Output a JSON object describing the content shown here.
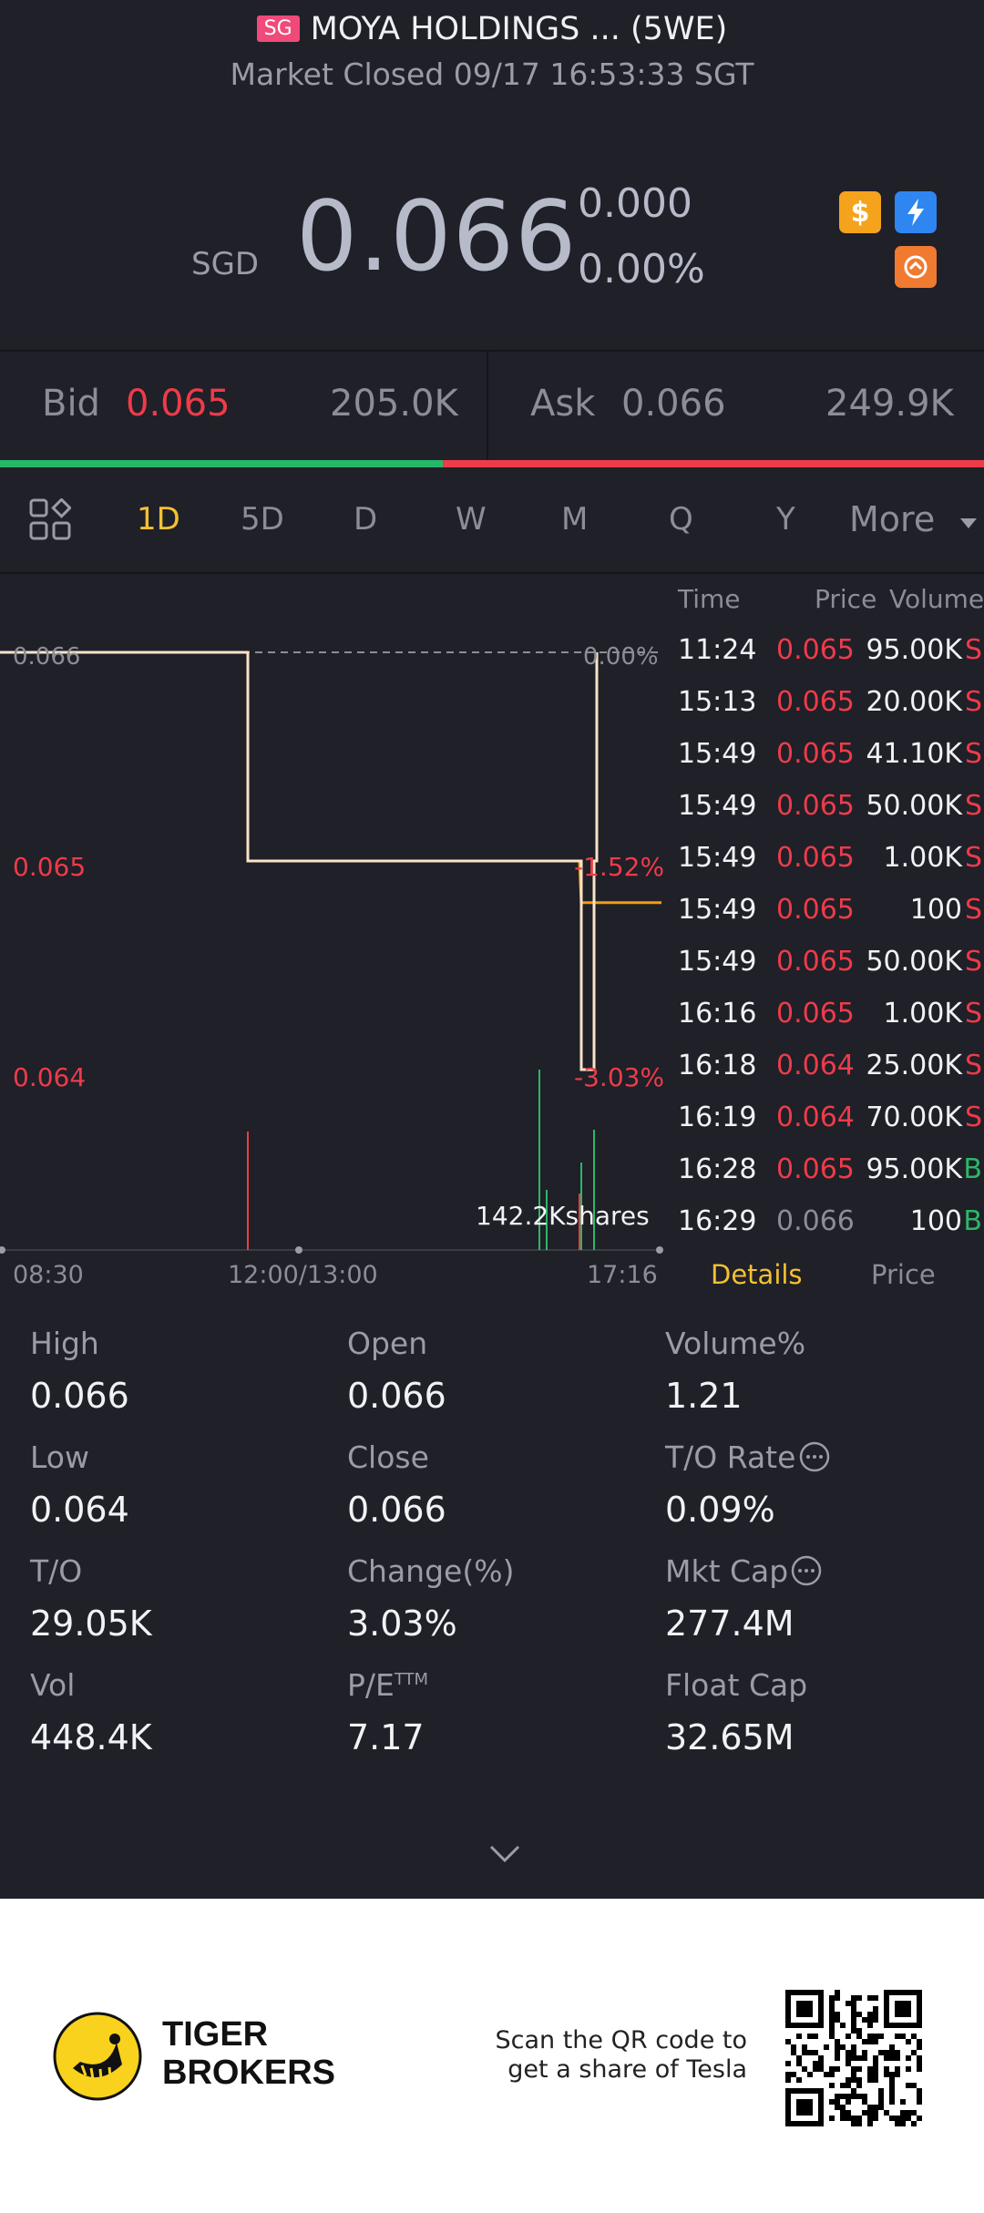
{
  "header": {
    "market_badge": "SG",
    "title": "MOYA HOLDINGS ... (5WE)",
    "subtitle": "Market Closed 09/17 16:53:33 SGT"
  },
  "quote": {
    "currency": "SGD",
    "price": "0.066",
    "change": "0.000",
    "change_pct": "0.00%",
    "icons": [
      "dollar-icon",
      "lightning-icon",
      "exchange-icon"
    ]
  },
  "bid_ask": {
    "bid_label": "Bid",
    "bid_price": "0.065",
    "bid_size": "205.0K",
    "ask_label": "Ask",
    "ask_price": "0.066",
    "ask_size": "249.9K",
    "bid_ratio": 0.45
  },
  "tabs": {
    "items": [
      "1D",
      "5D",
      "D",
      "W",
      "M",
      "Q",
      "Y"
    ],
    "active": "1D",
    "more_label": "More"
  },
  "chart": {
    "price_labels": {
      "top": "0.066",
      "mid": "0.065",
      "low": "0.064"
    },
    "pct_labels": {
      "top": "0.00%",
      "mid": "-1.52%",
      "low": "-3.03%"
    },
    "volume_label": "142.2Kshares",
    "time_labels": {
      "start": "08:30",
      "mid": "12:00/13:00",
      "end": "17:16"
    }
  },
  "chart_data": {
    "type": "line",
    "title": "",
    "x_label": "",
    "y_label": "",
    "price_series": [
      {
        "x": "08:30",
        "y": 0.066
      },
      {
        "x": "11:24",
        "y": 0.066
      },
      {
        "x": "11:25",
        "y": 0.065
      },
      {
        "x": "15:49",
        "y": 0.065
      },
      {
        "x": "16:18",
        "y": 0.064
      },
      {
        "x": "16:28",
        "y": 0.065
      },
      {
        "x": "16:29",
        "y": 0.066
      }
    ],
    "avg_series": [
      {
        "x": "15:49",
        "y": 0.065
      },
      {
        "x": "16:18",
        "y": 0.0648
      },
      {
        "x": "17:16",
        "y": 0.0648
      }
    ],
    "ylim": [
      0.064,
      0.066
    ],
    "prev_close": 0.066
  },
  "trades": {
    "headers": {
      "time": "Time",
      "price": "Price",
      "volume": "Volume"
    },
    "rows": [
      {
        "time": "11:24",
        "price": "0.065",
        "volume": "95.00K",
        "side": "S",
        "pc": "red"
      },
      {
        "time": "15:13",
        "price": "0.065",
        "volume": "20.00K",
        "side": "S",
        "pc": "red"
      },
      {
        "time": "15:49",
        "price": "0.065",
        "volume": "41.10K",
        "side": "S",
        "pc": "red"
      },
      {
        "time": "15:49",
        "price": "0.065",
        "volume": "50.00K",
        "side": "S",
        "pc": "red"
      },
      {
        "time": "15:49",
        "price": "0.065",
        "volume": "1.00K",
        "side": "S",
        "pc": "red"
      },
      {
        "time": "15:49",
        "price": "0.065",
        "volume": "100",
        "side": "S",
        "pc": "red"
      },
      {
        "time": "15:49",
        "price": "0.065",
        "volume": "50.00K",
        "side": "S",
        "pc": "red"
      },
      {
        "time": "16:16",
        "price": "0.065",
        "volume": "1.00K",
        "side": "S",
        "pc": "red"
      },
      {
        "time": "16:18",
        "price": "0.064",
        "volume": "25.00K",
        "side": "S",
        "pc": "red"
      },
      {
        "time": "16:19",
        "price": "0.064",
        "volume": "70.00K",
        "side": "S",
        "pc": "red"
      },
      {
        "time": "16:28",
        "price": "0.065",
        "volume": "95.00K",
        "side": "B",
        "pc": "red"
      },
      {
        "time": "16:29",
        "price": "0.066",
        "volume": "100",
        "side": "B",
        "pc": "gray"
      }
    ],
    "sub_tabs": [
      "Details",
      "Price"
    ]
  },
  "stats": [
    {
      "label": "High",
      "value": "0.066"
    },
    {
      "label": "Open",
      "value": "0.066"
    },
    {
      "label": "Volume%",
      "value": "1.21"
    },
    {
      "label": "Low",
      "value": "0.064"
    },
    {
      "label": "Close",
      "value": "0.066"
    },
    {
      "label": "T/O Rate",
      "value": "0.09%"
    },
    {
      "label": "T/O",
      "value": "29.05K"
    },
    {
      "label": "Change(%)",
      "value": "3.03%"
    },
    {
      "label": "Mkt Cap",
      "value": "277.4M"
    },
    {
      "label": "Vol",
      "value": "448.4K"
    },
    {
      "label": "P/E",
      "label_sup": "TTM",
      "value": "7.17"
    },
    {
      "label": "Float Cap",
      "value": "32.65M"
    }
  ],
  "footer": {
    "brand_line1": "TIGER",
    "brand_line2": "BROKERS",
    "promo_line1": "Scan the QR code to",
    "promo_line2": "get a share of Tesla"
  },
  "colors": {
    "background": "#1f2028",
    "up": "#27b768",
    "down": "#ee3b4a",
    "accent": "#f3c131"
  }
}
